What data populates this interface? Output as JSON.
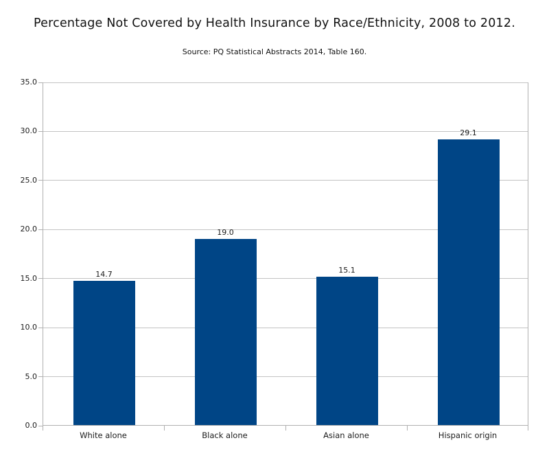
{
  "chart_data": {
    "type": "bar",
    "title": "Percentage Not Covered by Health Insurance by Race/Ethnicity, 2008 to 2012.",
    "subtitle": "Source: PQ Statistical Abstracts 2014, Table 160.",
    "categories": [
      "White alone",
      "Black alone",
      "Asian alone",
      "Hispanic origin"
    ],
    "values": [
      14.7,
      19.0,
      15.1,
      29.1
    ],
    "value_labels": [
      "14.7",
      "19.0",
      "15.1",
      "29.1"
    ],
    "xlabel": "",
    "ylabel": "",
    "ylim": [
      0,
      35
    ],
    "ytick_interval": 5,
    "ytick_labels": [
      "0.0",
      "5.0",
      "10.0",
      "15.0",
      "20.0",
      "25.0",
      "30.0",
      "35.0"
    ],
    "grid": true,
    "legend": "none",
    "colors": {
      "bar": "#004586",
      "grid": "#c3c3c3",
      "axis": "#b0b0b0",
      "text": "#1a1a1a",
      "background": "#ffffff"
    }
  }
}
